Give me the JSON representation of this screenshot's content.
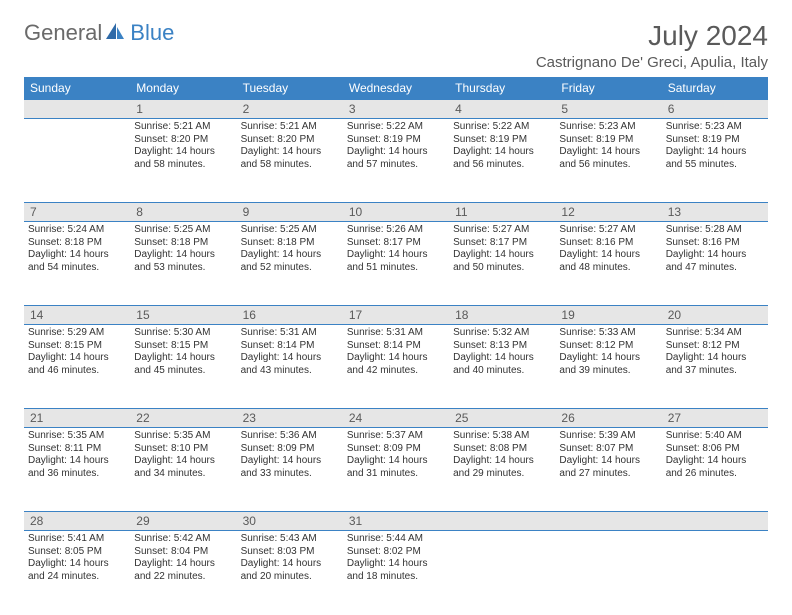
{
  "logo": {
    "general": "General",
    "blue": "Blue",
    "sail_color": "#3b82c4"
  },
  "title": "July 2024",
  "location": "Castrignano De' Greci, Apulia, Italy",
  "colors": {
    "header_bg": "#3b82c4",
    "header_fg": "#ffffff",
    "daynum_bg": "#e6e6e6",
    "border": "#3b82c4",
    "text": "#333333",
    "title_text": "#5a5a5a"
  },
  "fonts": {
    "title_size": 28,
    "location_size": 15,
    "weekday_size": 12,
    "daynum_size": 12,
    "cell_size": 10
  },
  "weekdays": [
    "Sunday",
    "Monday",
    "Tuesday",
    "Wednesday",
    "Thursday",
    "Friday",
    "Saturday"
  ],
  "weeks": [
    {
      "nums": [
        "",
        "1",
        "2",
        "3",
        "4",
        "5",
        "6"
      ],
      "cells": [
        {
          "sunrise": "",
          "sunset": "",
          "daylight": ""
        },
        {
          "sunrise": "Sunrise: 5:21 AM",
          "sunset": "Sunset: 8:20 PM",
          "daylight": "Daylight: 14 hours and 58 minutes."
        },
        {
          "sunrise": "Sunrise: 5:21 AM",
          "sunset": "Sunset: 8:20 PM",
          "daylight": "Daylight: 14 hours and 58 minutes."
        },
        {
          "sunrise": "Sunrise: 5:22 AM",
          "sunset": "Sunset: 8:19 PM",
          "daylight": "Daylight: 14 hours and 57 minutes."
        },
        {
          "sunrise": "Sunrise: 5:22 AM",
          "sunset": "Sunset: 8:19 PM",
          "daylight": "Daylight: 14 hours and 56 minutes."
        },
        {
          "sunrise": "Sunrise: 5:23 AM",
          "sunset": "Sunset: 8:19 PM",
          "daylight": "Daylight: 14 hours and 56 minutes."
        },
        {
          "sunrise": "Sunrise: 5:23 AM",
          "sunset": "Sunset: 8:19 PM",
          "daylight": "Daylight: 14 hours and 55 minutes."
        }
      ]
    },
    {
      "nums": [
        "7",
        "8",
        "9",
        "10",
        "11",
        "12",
        "13"
      ],
      "cells": [
        {
          "sunrise": "Sunrise: 5:24 AM",
          "sunset": "Sunset: 8:18 PM",
          "daylight": "Daylight: 14 hours and 54 minutes."
        },
        {
          "sunrise": "Sunrise: 5:25 AM",
          "sunset": "Sunset: 8:18 PM",
          "daylight": "Daylight: 14 hours and 53 minutes."
        },
        {
          "sunrise": "Sunrise: 5:25 AM",
          "sunset": "Sunset: 8:18 PM",
          "daylight": "Daylight: 14 hours and 52 minutes."
        },
        {
          "sunrise": "Sunrise: 5:26 AM",
          "sunset": "Sunset: 8:17 PM",
          "daylight": "Daylight: 14 hours and 51 minutes."
        },
        {
          "sunrise": "Sunrise: 5:27 AM",
          "sunset": "Sunset: 8:17 PM",
          "daylight": "Daylight: 14 hours and 50 minutes."
        },
        {
          "sunrise": "Sunrise: 5:27 AM",
          "sunset": "Sunset: 8:16 PM",
          "daylight": "Daylight: 14 hours and 48 minutes."
        },
        {
          "sunrise": "Sunrise: 5:28 AM",
          "sunset": "Sunset: 8:16 PM",
          "daylight": "Daylight: 14 hours and 47 minutes."
        }
      ]
    },
    {
      "nums": [
        "14",
        "15",
        "16",
        "17",
        "18",
        "19",
        "20"
      ],
      "cells": [
        {
          "sunrise": "Sunrise: 5:29 AM",
          "sunset": "Sunset: 8:15 PM",
          "daylight": "Daylight: 14 hours and 46 minutes."
        },
        {
          "sunrise": "Sunrise: 5:30 AM",
          "sunset": "Sunset: 8:15 PM",
          "daylight": "Daylight: 14 hours and 45 minutes."
        },
        {
          "sunrise": "Sunrise: 5:31 AM",
          "sunset": "Sunset: 8:14 PM",
          "daylight": "Daylight: 14 hours and 43 minutes."
        },
        {
          "sunrise": "Sunrise: 5:31 AM",
          "sunset": "Sunset: 8:14 PM",
          "daylight": "Daylight: 14 hours and 42 minutes."
        },
        {
          "sunrise": "Sunrise: 5:32 AM",
          "sunset": "Sunset: 8:13 PM",
          "daylight": "Daylight: 14 hours and 40 minutes."
        },
        {
          "sunrise": "Sunrise: 5:33 AM",
          "sunset": "Sunset: 8:12 PM",
          "daylight": "Daylight: 14 hours and 39 minutes."
        },
        {
          "sunrise": "Sunrise: 5:34 AM",
          "sunset": "Sunset: 8:12 PM",
          "daylight": "Daylight: 14 hours and 37 minutes."
        }
      ]
    },
    {
      "nums": [
        "21",
        "22",
        "23",
        "24",
        "25",
        "26",
        "27"
      ],
      "cells": [
        {
          "sunrise": "Sunrise: 5:35 AM",
          "sunset": "Sunset: 8:11 PM",
          "daylight": "Daylight: 14 hours and 36 minutes."
        },
        {
          "sunrise": "Sunrise: 5:35 AM",
          "sunset": "Sunset: 8:10 PM",
          "daylight": "Daylight: 14 hours and 34 minutes."
        },
        {
          "sunrise": "Sunrise: 5:36 AM",
          "sunset": "Sunset: 8:09 PM",
          "daylight": "Daylight: 14 hours and 33 minutes."
        },
        {
          "sunrise": "Sunrise: 5:37 AM",
          "sunset": "Sunset: 8:09 PM",
          "daylight": "Daylight: 14 hours and 31 minutes."
        },
        {
          "sunrise": "Sunrise: 5:38 AM",
          "sunset": "Sunset: 8:08 PM",
          "daylight": "Daylight: 14 hours and 29 minutes."
        },
        {
          "sunrise": "Sunrise: 5:39 AM",
          "sunset": "Sunset: 8:07 PM",
          "daylight": "Daylight: 14 hours and 27 minutes."
        },
        {
          "sunrise": "Sunrise: 5:40 AM",
          "sunset": "Sunset: 8:06 PM",
          "daylight": "Daylight: 14 hours and 26 minutes."
        }
      ]
    },
    {
      "nums": [
        "28",
        "29",
        "30",
        "31",
        "",
        "",
        ""
      ],
      "cells": [
        {
          "sunrise": "Sunrise: 5:41 AM",
          "sunset": "Sunset: 8:05 PM",
          "daylight": "Daylight: 14 hours and 24 minutes."
        },
        {
          "sunrise": "Sunrise: 5:42 AM",
          "sunset": "Sunset: 8:04 PM",
          "daylight": "Daylight: 14 hours and 22 minutes."
        },
        {
          "sunrise": "Sunrise: 5:43 AM",
          "sunset": "Sunset: 8:03 PM",
          "daylight": "Daylight: 14 hours and 20 minutes."
        },
        {
          "sunrise": "Sunrise: 5:44 AM",
          "sunset": "Sunset: 8:02 PM",
          "daylight": "Daylight: 14 hours and 18 minutes."
        },
        {
          "sunrise": "",
          "sunset": "",
          "daylight": ""
        },
        {
          "sunrise": "",
          "sunset": "",
          "daylight": ""
        },
        {
          "sunrise": "",
          "sunset": "",
          "daylight": ""
        }
      ]
    }
  ]
}
